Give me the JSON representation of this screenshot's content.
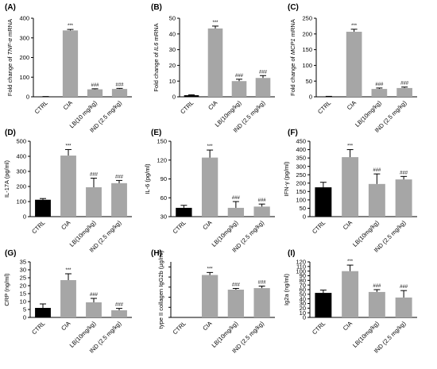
{
  "chart_data": [
    {
      "type": "bar",
      "panel_label": "(A)",
      "ylabel_parts": [
        {
          "t": "Fold change of "
        },
        {
          "t": "TNF-α",
          "i": true
        },
        {
          "t": " mRNA"
        }
      ],
      "categories": [
        "CTRL",
        "CIA",
        "LB(10 mg/kg)",
        "IND (2.5 mg/kg)"
      ],
      "values": [
        1,
        338,
        38,
        40
      ],
      "errors": [
        0.5,
        5,
        3,
        3
      ],
      "annotations": [
        "",
        "***",
        "###",
        "###"
      ],
      "colors": [
        "#000000",
        "#a6a6a6",
        "#a6a6a6",
        "#a6a6a6"
      ],
      "ylim": [
        0,
        400
      ],
      "yticks": [
        0,
        100,
        200,
        300,
        400
      ],
      "tick_labels_shown": true
    },
    {
      "type": "bar",
      "panel_label": "(B)",
      "ylabel_parts": [
        {
          "t": "Fold change of "
        },
        {
          "t": "IL6",
          "i": true
        },
        {
          "t": " mRNA"
        }
      ],
      "categories": [
        "CTRL",
        "CIA",
        "LB(10mg/kg)",
        "IND (2.5 mg/kg)"
      ],
      "values": [
        1,
        43.5,
        10,
        12
      ],
      "errors": [
        0.3,
        1.5,
        1.2,
        1.5
      ],
      "annotations": [
        "",
        "***",
        "###",
        "###"
      ],
      "colors": [
        "#000000",
        "#a6a6a6",
        "#a6a6a6",
        "#a6a6a6"
      ],
      "ylim": [
        0,
        50
      ],
      "yticks": [
        0,
        10,
        20,
        30,
        40,
        50
      ],
      "tick_labels_shown": true
    },
    {
      "type": "bar",
      "panel_label": "(C)",
      "ylabel_parts": [
        {
          "t": "Fold change of "
        },
        {
          "t": "MCP1",
          "i": true
        },
        {
          "t": " mRNA"
        }
      ],
      "categories": [
        "CTRL",
        "CIA",
        "LB(10mg/kg)",
        "IND (2.5 mg/kg)"
      ],
      "values": [
        1,
        207,
        25,
        28
      ],
      "errors": [
        0.5,
        8,
        3,
        3
      ],
      "annotations": [
        "",
        "***",
        "###",
        "###"
      ],
      "colors": [
        "#000000",
        "#a6a6a6",
        "#a6a6a6",
        "#a6a6a6"
      ],
      "ylim": [
        0,
        250
      ],
      "yticks": [
        0,
        50,
        100,
        150,
        200,
        250
      ],
      "tick_labels_shown": true
    },
    {
      "type": "bar",
      "panel_label": "(D)",
      "ylabel_parts": [
        {
          "t": "IL-17A (pg/ml)"
        }
      ],
      "categories": [
        "CTRL",
        "CIA",
        "LB(10mg/kg)",
        "IND (2.5 mg/kg)"
      ],
      "values": [
        112,
        405,
        195,
        222
      ],
      "errors": [
        8,
        40,
        60,
        18
      ],
      "annotations": [
        "",
        "***",
        "###",
        "###"
      ],
      "colors": [
        "#000000",
        "#a6a6a6",
        "#a6a6a6",
        "#a6a6a6"
      ],
      "ylim": [
        0,
        500
      ],
      "yticks": [
        0,
        100,
        200,
        300,
        400,
        500
      ],
      "tick_labels_shown": true
    },
    {
      "type": "bar",
      "panel_label": "(E)",
      "ylabel_parts": [
        {
          "t": "IL-6 (pg/ml)"
        }
      ],
      "categories": [
        "CTRL",
        "CIA",
        "LB(10mg/kg)",
        "IND (2.5 mg/kg)"
      ],
      "values": [
        44,
        124,
        44,
        46
      ],
      "errors": [
        4,
        12,
        10,
        4
      ],
      "annotations": [
        "",
        "***",
        "###",
        "###"
      ],
      "colors": [
        "#000000",
        "#a6a6a6",
        "#a6a6a6",
        "#a6a6a6"
      ],
      "ylim": [
        30,
        150
      ],
      "yticks": [
        30,
        60,
        90,
        120,
        150
      ],
      "ytick_text": [
        "30",
        "60",
        "90",
        "120",
        "150"
      ],
      "tick_labels_shown": true
    },
    {
      "type": "bar",
      "panel_label": "(F)",
      "ylabel_parts": [
        {
          "t": "IFN-γ (pg/ml)"
        }
      ],
      "categories": [
        "CTRL",
        "CIA",
        "LB(10mg/kg)",
        "IND (2.5 mg/kg)"
      ],
      "values": [
        175,
        355,
        195,
        222
      ],
      "errors": [
        30,
        45,
        60,
        18
      ],
      "annotations": [
        "",
        "***",
        "###",
        "###"
      ],
      "colors": [
        "#000000",
        "#a6a6a6",
        "#a6a6a6",
        "#a6a6a6"
      ],
      "ylim": [
        0,
        450
      ],
      "yticks": [
        0,
        50,
        100,
        150,
        200,
        250,
        300,
        350,
        400,
        450
      ],
      "tick_labels_shown": true
    },
    {
      "type": "bar",
      "panel_label": "(G)",
      "ylabel_parts": [
        {
          "t": "CRP (ng/ml)"
        }
      ],
      "categories": [
        "CTRL",
        "CIA",
        "LB(10mg/kg)",
        "IND (2.5 mg/kg)"
      ],
      "values": [
        6,
        23.5,
        9.5,
        4.5
      ],
      "errors": [
        2.5,
        4,
        2.5,
        1.2
      ],
      "annotations": [
        "",
        "***",
        "###",
        "###"
      ],
      "colors": [
        "#000000",
        "#a6a6a6",
        "#a6a6a6",
        "#a6a6a6"
      ],
      "ylim": [
        0,
        35
      ],
      "yticks": [
        0,
        5,
        10,
        15,
        20,
        25,
        30,
        35
      ],
      "tick_labels_shown": true
    },
    {
      "type": "bar",
      "panel_label": "(H)",
      "ylabel_parts": [
        {
          "t": "type II collagen IgG2b (μg/ml)"
        }
      ],
      "categories": [
        "CTRL",
        "CIA",
        "LB(10mg/kg)",
        "IND (2.5 mg/kg)"
      ],
      "values": [
        0,
        4.2,
        2.75,
        2.9
      ],
      "errors": [
        0,
        0.25,
        0.12,
        0.2
      ],
      "annotations": [
        "",
        "***",
        "###",
        "###"
      ],
      "colors": [
        "#000000",
        "#a6a6a6",
        "#a6a6a6",
        "#a6a6a6"
      ],
      "ylim": [
        0,
        5.5
      ],
      "yticks": [
        0,
        1,
        2,
        3,
        4,
        5
      ],
      "tick_labels_shown": false
    },
    {
      "type": "bar",
      "panel_label": "(I)",
      "ylabel_parts": [
        {
          "t": "Ig2a (ng/ml)"
        }
      ],
      "categories": [
        "CTRL",
        "CIA",
        "LB(10mg/kg)",
        "IND (2.5 mg/kg)"
      ],
      "values": [
        53,
        100,
        55,
        43
      ],
      "errors": [
        6,
        13,
        5,
        15
      ],
      "annotations": [
        "",
        "***",
        "###",
        "###"
      ],
      "colors": [
        "#000000",
        "#a6a6a6",
        "#a6a6a6",
        "#a6a6a6"
      ],
      "ylim": [
        0,
        120
      ],
      "yticks": [
        0,
        10,
        20,
        30,
        40,
        50,
        60,
        70,
        80,
        90,
        100,
        110,
        120
      ],
      "tick_labels_shown": true
    }
  ]
}
